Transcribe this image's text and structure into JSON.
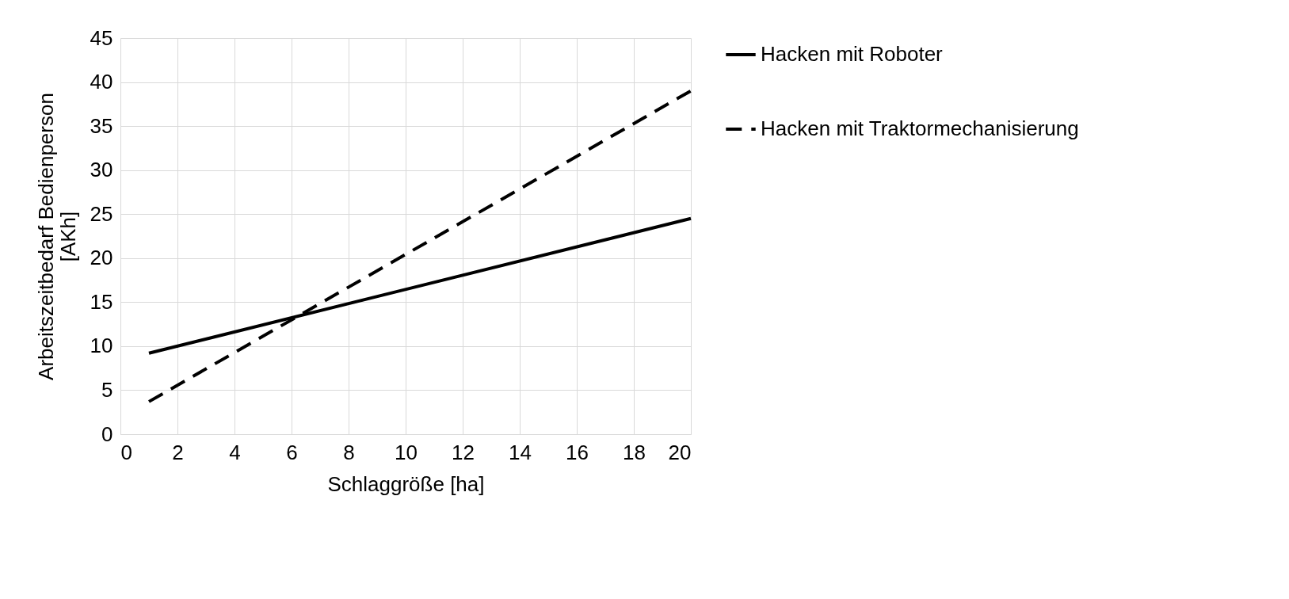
{
  "chart_data": {
    "type": "line",
    "xlabel": "Schlaggröße [ha]",
    "ylabel": "Arbeitszeitbedarf  Bedienperson\n[AKh]",
    "x": [
      1,
      20
    ],
    "xlim": [
      0,
      20
    ],
    "xticks": [
      0,
      2,
      4,
      6,
      8,
      10,
      12,
      14,
      16,
      18,
      20
    ],
    "ylim": [
      0,
      45
    ],
    "yticks": [
      0,
      5,
      10,
      15,
      20,
      25,
      30,
      35,
      40,
      45
    ],
    "grid": true,
    "legend": "right",
    "series": [
      {
        "name": "Hacken mit Roboter",
        "color": "#000000",
        "line_style": "solid",
        "values": [
          9.2,
          24.5
        ]
      },
      {
        "name": "Hacken mit Traktormechanisierung",
        "color": "#000000",
        "line_style": "dashed",
        "values": [
          3.7,
          39
        ]
      }
    ]
  }
}
